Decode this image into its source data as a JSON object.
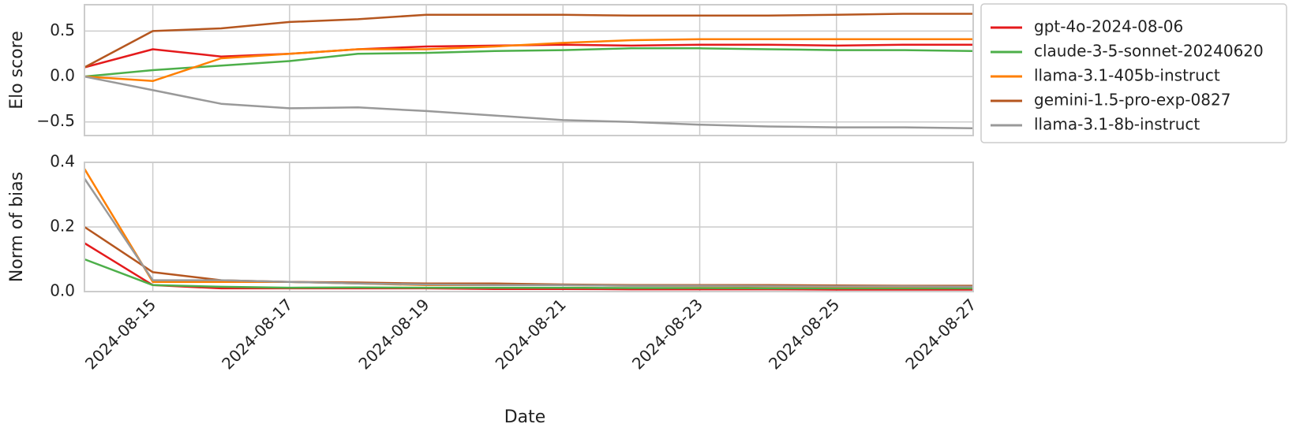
{
  "chart_data": [
    {
      "type": "line",
      "y_label": "Elo score",
      "x": [
        "2024-08-14",
        "2024-08-15",
        "2024-08-16",
        "2024-08-17",
        "2024-08-18",
        "2024-08-19",
        "2024-08-20",
        "2024-08-21",
        "2024-08-22",
        "2024-08-23",
        "2024-08-24",
        "2024-08-25",
        "2024-08-26",
        "2024-08-27"
      ],
      "xlim": [
        "2024-08-14",
        "2024-08-27"
      ],
      "xticks": [
        "2024-08-15",
        "2024-08-17",
        "2024-08-19",
        "2024-08-21",
        "2024-08-23",
        "2024-08-25",
        "2024-08-27"
      ],
      "ylim": [
        -0.65,
        0.79
      ],
      "yticks": [
        {
          "value": -0.5,
          "label": "−0.5"
        },
        {
          "value": 0,
          "label": "0.0"
        },
        0.5
      ],
      "grid": true,
      "legend": "right",
      "series": [
        {
          "name": "gpt-4o-2024-08-06",
          "color": "#e41a1c",
          "values": [
            0.1,
            0.3,
            0.22,
            0.25,
            0.3,
            0.33,
            0.34,
            0.35,
            0.34,
            0.35,
            0.35,
            0.34,
            0.35,
            0.35
          ]
        },
        {
          "name": "claude-3-5-sonnet-20240620",
          "color": "#4daf4a",
          "values": [
            0.0,
            0.07,
            0.12,
            0.17,
            0.25,
            0.26,
            0.28,
            0.29,
            0.31,
            0.31,
            0.3,
            0.29,
            0.29,
            0.28
          ]
        },
        {
          "name": "llama-3.1-405b-instruct",
          "color": "#ff7f00",
          "values": [
            0.0,
            -0.05,
            0.2,
            0.25,
            0.3,
            0.3,
            0.33,
            0.37,
            0.4,
            0.41,
            0.41,
            0.41,
            0.41,
            0.41
          ]
        },
        {
          "name": "gemini-1.5-pro-exp-0827",
          "color": "#b5561f",
          "values": [
            0.1,
            0.5,
            0.53,
            0.6,
            0.63,
            0.68,
            0.68,
            0.68,
            0.67,
            0.67,
            0.67,
            0.68,
            0.69,
            0.69
          ]
        },
        {
          "name": "llama-3.1-8b-instruct",
          "color": "#999999",
          "values": [
            0.0,
            -0.15,
            -0.3,
            -0.35,
            -0.34,
            -0.38,
            -0.43,
            -0.48,
            -0.5,
            -0.53,
            -0.55,
            -0.56,
            -0.56,
            -0.57
          ]
        }
      ]
    },
    {
      "type": "line",
      "y_label": "Norm of bias",
      "x_label": "Date",
      "x": [
        "2024-08-14",
        "2024-08-15",
        "2024-08-16",
        "2024-08-17",
        "2024-08-18",
        "2024-08-19",
        "2024-08-20",
        "2024-08-21",
        "2024-08-22",
        "2024-08-23",
        "2024-08-24",
        "2024-08-25",
        "2024-08-26",
        "2024-08-27"
      ],
      "xlim": [
        "2024-08-14",
        "2024-08-27"
      ],
      "xticks": [
        "2024-08-15",
        "2024-08-17",
        "2024-08-19",
        "2024-08-21",
        "2024-08-23",
        "2024-08-25",
        "2024-08-27"
      ],
      "ylim": [
        0,
        0.4
      ],
      "yticks": [
        {
          "value": 0,
          "label": "0.0"
        },
        0.2,
        0.4
      ],
      "grid": true,
      "series": [
        {
          "name": "gpt-4o-2024-08-06",
          "color": "#e41a1c",
          "values": [
            0.15,
            0.02,
            0.01,
            0.01,
            0.01,
            0.01,
            0.008,
            0.008,
            0.007,
            0.007,
            0.007,
            0.006,
            0.006,
            0.006
          ]
        },
        {
          "name": "claude-3-5-sonnet-20240620",
          "color": "#4daf4a",
          "values": [
            0.1,
            0.02,
            0.015,
            0.012,
            0.013,
            0.012,
            0.012,
            0.012,
            0.011,
            0.011,
            0.01,
            0.01,
            0.01,
            0.01
          ]
        },
        {
          "name": "llama-3.1-405b-instruct",
          "color": "#ff7f00",
          "values": [
            0.38,
            0.03,
            0.03,
            0.03,
            0.025,
            0.02,
            0.02,
            0.02,
            0.018,
            0.017,
            0.016,
            0.015,
            0.015,
            0.015
          ]
        },
        {
          "name": "gemini-1.5-pro-exp-0827",
          "color": "#b5561f",
          "values": [
            0.2,
            0.06,
            0.035,
            0.03,
            0.028,
            0.025,
            0.025,
            0.022,
            0.02,
            0.02,
            0.02,
            0.019,
            0.018,
            0.018
          ]
        },
        {
          "name": "llama-3.1-8b-instruct",
          "color": "#999999",
          "values": [
            0.35,
            0.035,
            0.035,
            0.03,
            0.025,
            0.022,
            0.02,
            0.02,
            0.018,
            0.018,
            0.017,
            0.016,
            0.016,
            0.015
          ]
        }
      ]
    }
  ]
}
